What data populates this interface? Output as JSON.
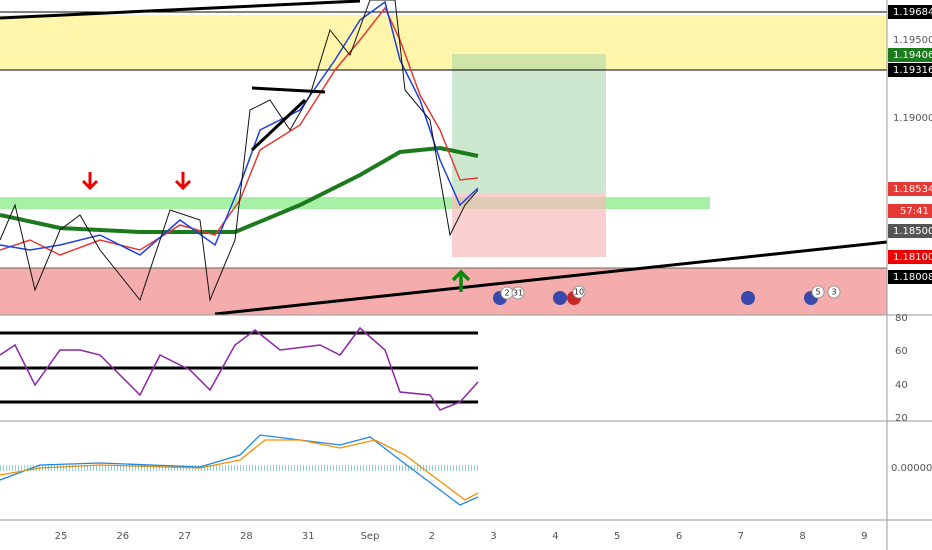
{
  "price_axis": {
    "labels": [
      "1.19684",
      "1.19500",
      "1.19406",
      "1.19316",
      "1.19000",
      "1.18534",
      "57:41",
      "1.18500",
      "1.18100",
      "1.18008"
    ]
  },
  "rsi_axis": {
    "labels": [
      "80",
      "60",
      "40",
      "20"
    ]
  },
  "macd_axis": {
    "labels": [
      "0.00000"
    ]
  },
  "time_axis": {
    "labels": [
      "25",
      "26",
      "27",
      "28",
      "31",
      "Sep",
      "2",
      "3",
      "4",
      "5",
      "6",
      "7",
      "8",
      "9"
    ]
  },
  "events": {
    "labels": [
      "2",
      "31",
      "10",
      "5",
      "3"
    ]
  }
}
